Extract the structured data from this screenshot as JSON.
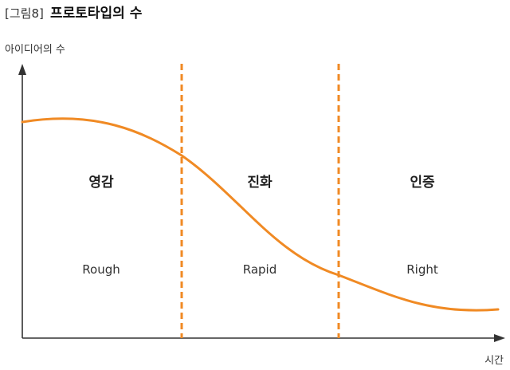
{
  "figure": {
    "title_prefix": "[그림8]",
    "title": "프로토타입의 수"
  },
  "chart_data": {
    "type": "line",
    "ylabel": "아이디어의 수",
    "xlabel": "시간",
    "grid": false,
    "legend": "none",
    "colors": {
      "curve": "#f08a24",
      "divider": "#f08a24",
      "axis": "#333333"
    },
    "phases": [
      {
        "ko": "영감",
        "en": "Rough"
      },
      {
        "ko": "진화",
        "en": "Rapid"
      },
      {
        "ko": "인증",
        "en": "Right"
      }
    ]
  }
}
